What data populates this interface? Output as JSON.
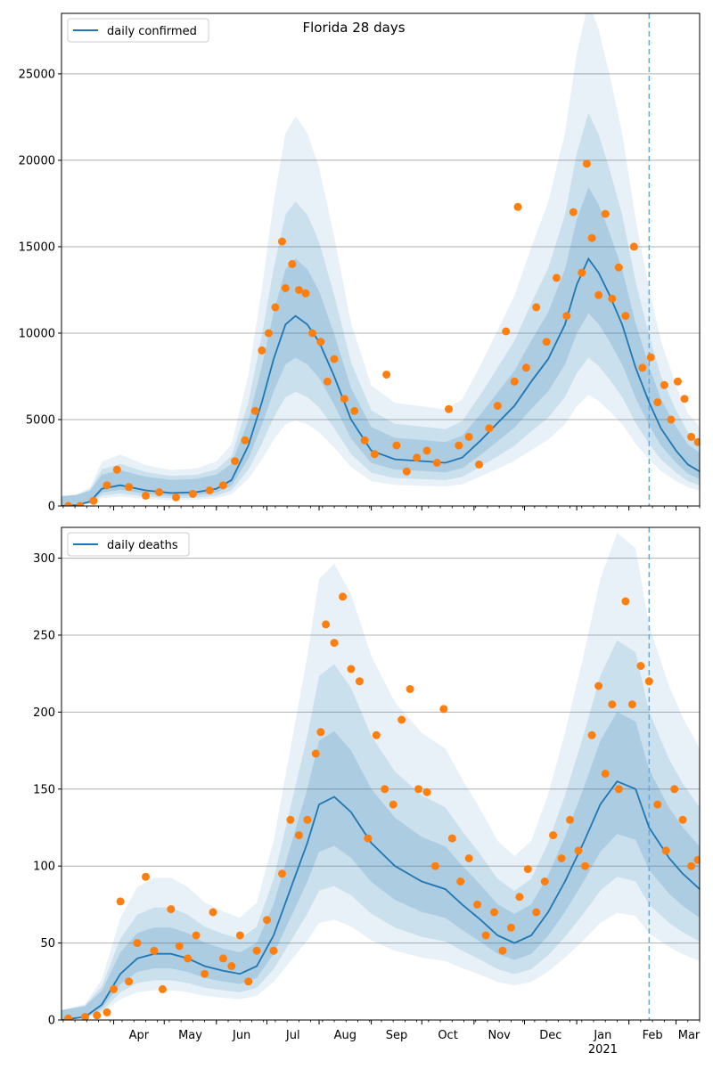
{
  "chart_data": [
    {
      "type": "line",
      "title": "Florida 28 days",
      "legend": {
        "label": "daily confirmed",
        "placement": "top-left"
      },
      "ylim": [
        0,
        28500
      ],
      "yticks": [
        0,
        5000,
        10000,
        15000,
        20000,
        25000
      ],
      "grid": "horizontal",
      "x_start": "2020-03-01",
      "x_end": "2021-03-15",
      "forecast_start": "2021-02-13",
      "colors": {
        "line": "#1f77b4",
        "points": "#ff7f0e",
        "band": "#1f77b4",
        "vline": "#6ea8d6"
      },
      "series": [
        {
          "name": "daily confirmed",
          "kind": "line",
          "x": [
            "2020-03-01",
            "2020-03-10",
            "2020-03-18",
            "2020-03-25",
            "2020-04-05",
            "2020-04-20",
            "2020-05-05",
            "2020-05-20",
            "2020-06-01",
            "2020-06-10",
            "2020-06-20",
            "2020-06-28",
            "2020-07-05",
            "2020-07-12",
            "2020-07-18",
            "2020-07-25",
            "2020-08-01",
            "2020-08-10",
            "2020-08-20",
            "2020-09-01",
            "2020-09-15",
            "2020-10-01",
            "2020-10-15",
            "2020-10-25",
            "2020-11-05",
            "2020-11-15",
            "2020-11-25",
            "2020-12-05",
            "2020-12-15",
            "2020-12-25",
            "2021-01-01",
            "2021-01-08",
            "2021-01-14",
            "2021-01-20",
            "2021-01-28",
            "2021-02-05",
            "2021-02-13",
            "2021-02-20",
            "2021-03-01",
            "2021-03-08",
            "2021-03-15"
          ],
          "y": [
            0,
            50,
            250,
            1000,
            1200,
            900,
            750,
            800,
            1000,
            1500,
            3500,
            6000,
            8500,
            10500,
            11000,
            10500,
            9500,
            7500,
            5000,
            3200,
            2700,
            2600,
            2500,
            2800,
            3800,
            4800,
            5800,
            7200,
            8500,
            10500,
            12800,
            14300,
            13500,
            12300,
            10500,
            8000,
            6000,
            4500,
            3200,
            2400,
            2000
          ]
        },
        {
          "name": "daily confirmed",
          "kind": "scatter",
          "x": [
            "2020-03-05",
            "2020-03-12",
            "2020-03-20",
            "2020-03-28",
            "2020-04-03",
            "2020-04-10",
            "2020-04-20",
            "2020-04-28",
            "2020-05-08",
            "2020-05-18",
            "2020-05-28",
            "2020-06-05",
            "2020-06-12",
            "2020-06-18",
            "2020-06-24",
            "2020-06-28",
            "2020-07-02",
            "2020-07-06",
            "2020-07-10",
            "2020-07-12",
            "2020-07-16",
            "2020-07-20",
            "2020-07-24",
            "2020-07-28",
            "2020-08-02",
            "2020-08-06",
            "2020-08-10",
            "2020-08-16",
            "2020-08-22",
            "2020-08-28",
            "2020-09-03",
            "2020-09-10",
            "2020-09-16",
            "2020-09-22",
            "2020-09-28",
            "2020-10-04",
            "2020-10-10",
            "2020-10-17",
            "2020-10-23",
            "2020-10-29",
            "2020-11-04",
            "2020-11-10",
            "2020-11-15",
            "2020-11-20",
            "2020-11-25",
            "2020-11-27",
            "2020-12-02",
            "2020-12-08",
            "2020-12-14",
            "2020-12-20",
            "2020-12-26",
            "2020-12-30",
            "2021-01-04",
            "2021-01-07",
            "2021-01-10",
            "2021-01-14",
            "2021-01-18",
            "2021-01-22",
            "2021-01-26",
            "2021-01-30",
            "2021-02-04",
            "2021-02-09",
            "2021-02-14",
            "2021-02-18",
            "2021-02-22",
            "2021-02-26",
            "2021-03-02",
            "2021-03-06",
            "2021-03-10",
            "2021-03-14"
          ],
          "y": [
            0,
            0,
            300,
            1200,
            2100,
            1100,
            600,
            800,
            500,
            700,
            900,
            1200,
            2600,
            3800,
            5500,
            9000,
            10000,
            11500,
            15300,
            12600,
            14000,
            12500,
            12300,
            10000,
            9500,
            7200,
            8500,
            6200,
            5500,
            3800,
            3000,
            7600,
            3500,
            2000,
            2800,
            3200,
            2500,
            5600,
            3500,
            4000,
            2400,
            4500,
            5800,
            10100,
            7200,
            17300,
            8000,
            11500,
            9500,
            13200,
            11000,
            17000,
            13500,
            19800,
            15500,
            12200,
            16900,
            12000,
            13800,
            11000,
            15000,
            8000,
            8600,
            6000,
            7000,
            5000,
            7200,
            6200,
            4000,
            3700
          ]
        }
      ]
    },
    {
      "type": "line",
      "title": "",
      "legend": {
        "label": "daily deaths",
        "placement": "top-left"
      },
      "ylim": [
        0,
        320
      ],
      "yticks": [
        0,
        50,
        100,
        150,
        200,
        250,
        300
      ],
      "grid": "horizontal",
      "x_start": "2020-03-01",
      "x_end": "2021-03-15",
      "forecast_start": "2021-02-13",
      "xtick_labels": [
        "Apr",
        "May",
        "Jun",
        "Jul",
        "Aug",
        "Sep",
        "Oct",
        "Nov",
        "Dec",
        "Jan",
        "Feb",
        "Mar"
      ],
      "xtick_dates": [
        "2020-04-01",
        "2020-05-01",
        "2020-06-01",
        "2020-07-01",
        "2020-08-01",
        "2020-09-01",
        "2020-10-01",
        "2020-11-01",
        "2020-12-01",
        "2021-01-01",
        "2021-02-01",
        "2021-03-01"
      ],
      "xtick_year_label": "2021",
      "colors": {
        "line": "#1f77b4",
        "points": "#ff7f0e",
        "band": "#1f77b4",
        "vline": "#6ea8d6"
      },
      "series": [
        {
          "name": "daily deaths",
          "kind": "line",
          "x": [
            "2020-03-01",
            "2020-03-15",
            "2020-03-25",
            "2020-04-05",
            "2020-04-15",
            "2020-04-25",
            "2020-05-05",
            "2020-05-15",
            "2020-05-25",
            "2020-06-05",
            "2020-06-15",
            "2020-06-25",
            "2020-07-05",
            "2020-07-15",
            "2020-07-25",
            "2020-08-01",
            "2020-08-10",
            "2020-08-20",
            "2020-09-01",
            "2020-09-15",
            "2020-10-01",
            "2020-10-15",
            "2020-10-25",
            "2020-11-05",
            "2020-11-15",
            "2020-11-25",
            "2020-12-05",
            "2020-12-15",
            "2020-12-25",
            "2021-01-05",
            "2021-01-15",
            "2021-01-25",
            "2021-02-05",
            "2021-02-13",
            "2021-02-25",
            "2021-03-05",
            "2021-03-15"
          ],
          "y": [
            0,
            2,
            10,
            30,
            40,
            43,
            43,
            40,
            35,
            32,
            30,
            35,
            55,
            85,
            115,
            140,
            145,
            135,
            115,
            100,
            90,
            85,
            75,
            65,
            55,
            50,
            55,
            70,
            90,
            115,
            140,
            155,
            150,
            125,
            105,
            95,
            85
          ]
        },
        {
          "name": "daily deaths",
          "kind": "scatter",
          "x": [
            "2020-03-05",
            "2020-03-15",
            "2020-03-22",
            "2020-03-28",
            "2020-04-01",
            "2020-04-05",
            "2020-04-10",
            "2020-04-15",
            "2020-04-20",
            "2020-04-25",
            "2020-04-30",
            "2020-05-05",
            "2020-05-10",
            "2020-05-15",
            "2020-05-20",
            "2020-05-25",
            "2020-05-30",
            "2020-06-05",
            "2020-06-10",
            "2020-06-15",
            "2020-06-20",
            "2020-06-25",
            "2020-07-01",
            "2020-07-05",
            "2020-07-10",
            "2020-07-15",
            "2020-07-20",
            "2020-07-25",
            "2020-07-30",
            "2020-08-02",
            "2020-08-05",
            "2020-08-10",
            "2020-08-15",
            "2020-08-20",
            "2020-08-25",
            "2020-08-30",
            "2020-09-04",
            "2020-09-09",
            "2020-09-14",
            "2020-09-19",
            "2020-09-24",
            "2020-09-29",
            "2020-10-04",
            "2020-10-09",
            "2020-10-14",
            "2020-10-19",
            "2020-10-24",
            "2020-10-29",
            "2020-11-03",
            "2020-11-08",
            "2020-11-13",
            "2020-11-18",
            "2020-11-23",
            "2020-11-28",
            "2020-12-03",
            "2020-12-08",
            "2020-12-13",
            "2020-12-18",
            "2020-12-23",
            "2020-12-28",
            "2021-01-02",
            "2021-01-06",
            "2021-01-10",
            "2021-01-14",
            "2021-01-18",
            "2021-01-22",
            "2021-01-26",
            "2021-01-30",
            "2021-02-03",
            "2021-02-08",
            "2021-02-13",
            "2021-02-18",
            "2021-02-23",
            "2021-02-28",
            "2021-03-05",
            "2021-03-10",
            "2021-03-14"
          ],
          "y": [
            1,
            2,
            3,
            5,
            20,
            77,
            25,
            50,
            93,
            45,
            20,
            72,
            48,
            40,
            55,
            30,
            70,
            40,
            35,
            55,
            25,
            45,
            65,
            45,
            95,
            130,
            120,
            130,
            173,
            187,
            257,
            245,
            275,
            228,
            220,
            118,
            185,
            150,
            140,
            195,
            215,
            150,
            148,
            100,
            202,
            118,
            90,
            105,
            75,
            55,
            70,
            45,
            60,
            80,
            98,
            70,
            90,
            120,
            105,
            130,
            110,
            100,
            185,
            217,
            160,
            205,
            150,
            272,
            205,
            230,
            220,
            140,
            110,
            150,
            130,
            100,
            104
          ]
        }
      ]
    }
  ]
}
